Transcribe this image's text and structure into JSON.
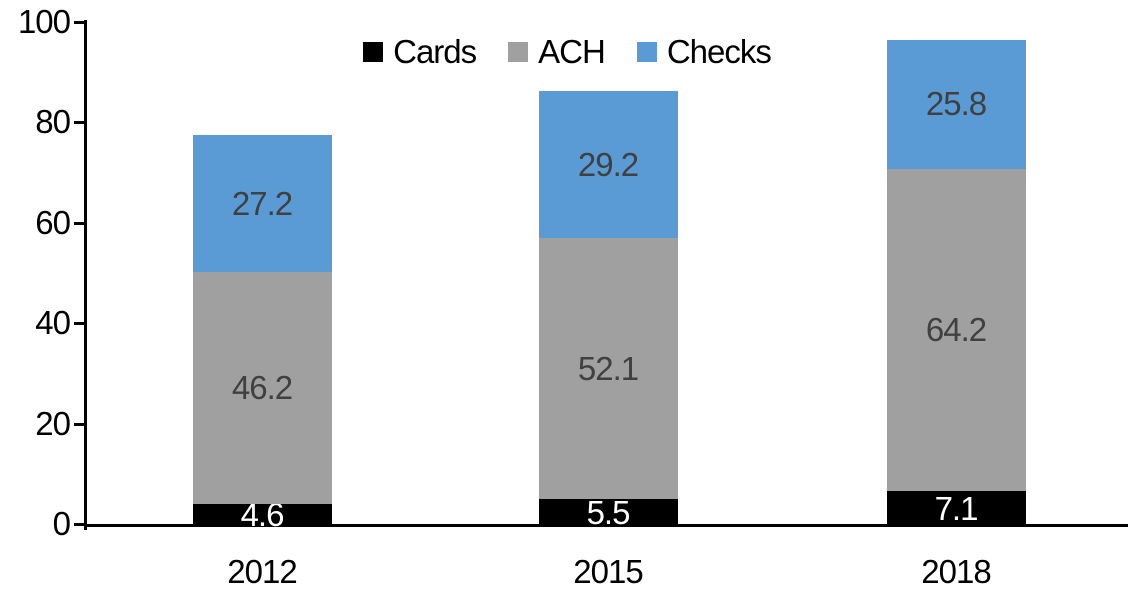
{
  "chart_data": {
    "type": "bar",
    "stacked": true,
    "title": "",
    "xlabel": "",
    "ylabel": "",
    "categories": [
      "2012",
      "2015",
      "2018"
    ],
    "series": [
      {
        "name": "Cards",
        "color": "#000000",
        "label_color": "#ffffff",
        "values": [
          4.6,
          5.5,
          7.1
        ]
      },
      {
        "name": "ACH",
        "color": "#a0a0a0",
        "label_color": "#404040",
        "values": [
          46.2,
          52.1,
          64.2
        ]
      },
      {
        "name": "Checks",
        "color": "#5b9bd5",
        "label_color": "#404040",
        "values": [
          27.2,
          29.2,
          25.8
        ]
      }
    ],
    "ylim": [
      0,
      100
    ],
    "yticks": [
      0,
      20,
      40,
      60,
      80,
      100
    ],
    "grid": false,
    "legend_position": "top-center",
    "axis_color": "#000000",
    "tick_label_color": "#000000",
    "background_color": "#ffffff"
  }
}
